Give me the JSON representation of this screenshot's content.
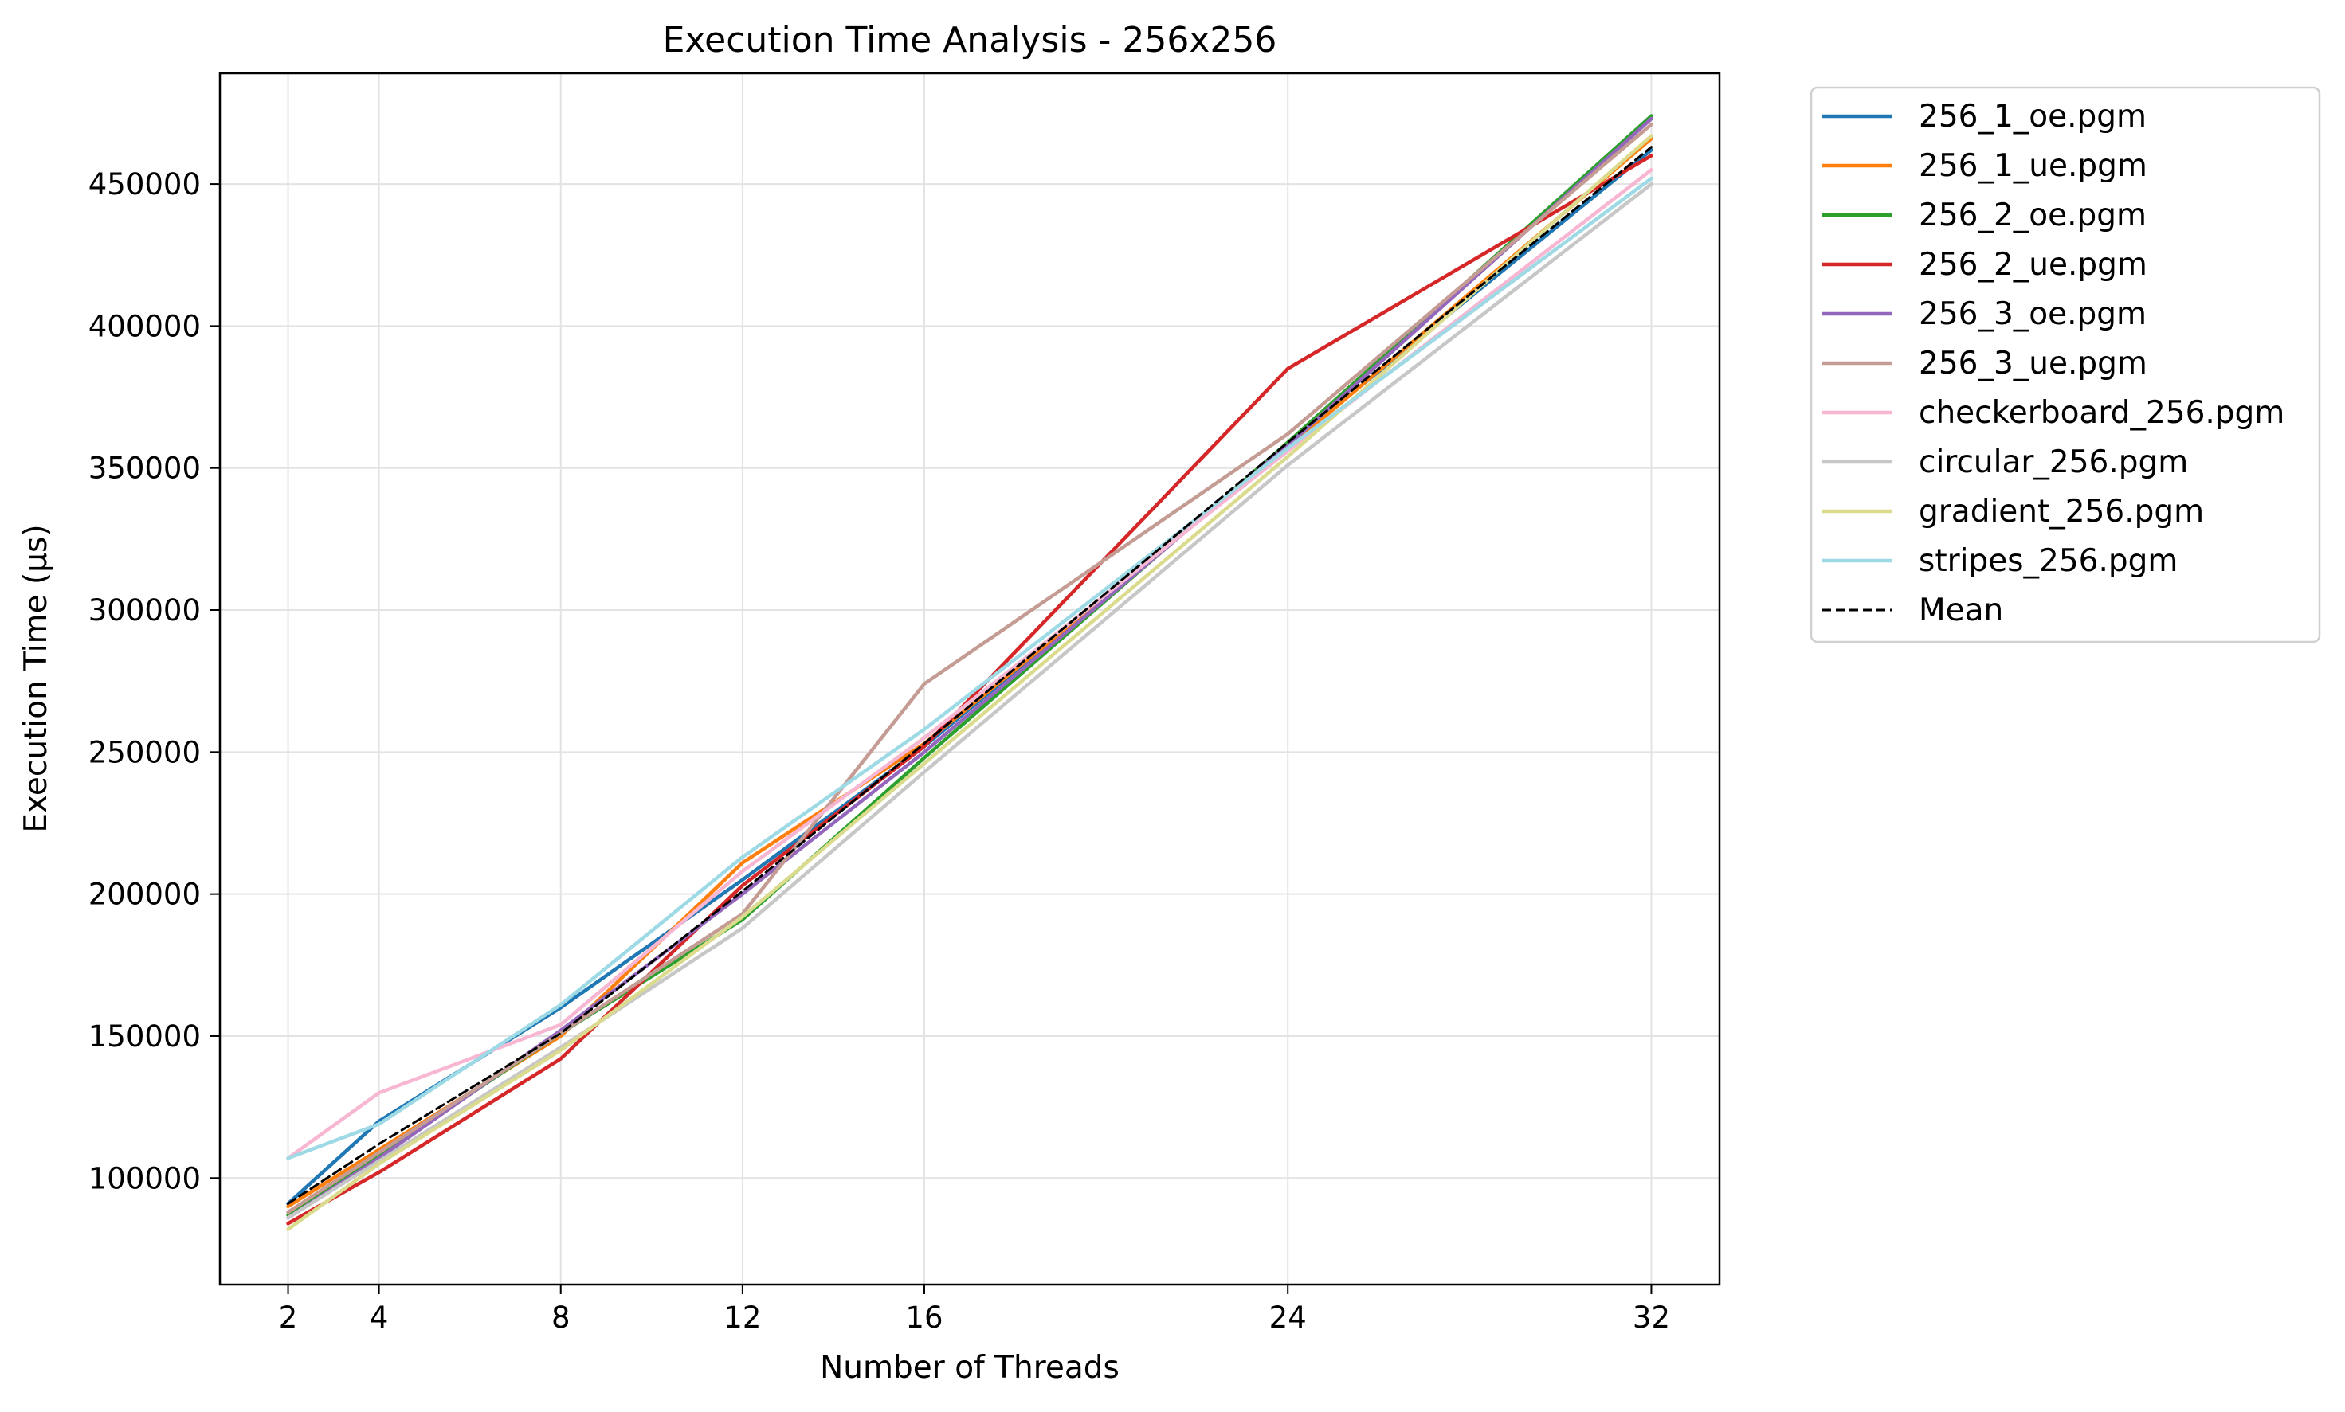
{
  "chart_data": {
    "type": "line",
    "title": "Execution Time Analysis - 256x256",
    "xlabel": "Number of Threads",
    "ylabel": "Execution Time (μs)",
    "x": [
      2,
      4,
      8,
      12,
      16,
      24,
      32
    ],
    "x_ticks": [
      "2",
      "4",
      "8",
      "12",
      "16",
      "24",
      "32"
    ],
    "y_ticks": [
      "100000",
      "150000",
      "200000",
      "250000",
      "300000",
      "350000",
      "400000",
      "450000"
    ],
    "y_tick_values": [
      100000,
      150000,
      200000,
      250000,
      300000,
      350000,
      400000,
      450000
    ],
    "xlim": [
      0.5,
      33.5
    ],
    "ylim": [
      62500,
      489000
    ],
    "grid": true,
    "legend_position": "outside-right-top",
    "series": [
      {
        "name": "256_1_oe.pgm",
        "color": "#1f77b4",
        "values": [
          91000,
          120000,
          160000,
          205000,
          252000,
          358000,
          462000
        ]
      },
      {
        "name": "256_1_ue.pgm",
        "color": "#ff7f0e",
        "values": [
          90000,
          110000,
          150000,
          211000,
          253000,
          357000,
          466000
        ]
      },
      {
        "name": "256_2_oe.pgm",
        "color": "#2ca02c",
        "values": [
          87000,
          108000,
          151000,
          191000,
          248000,
          359000,
          474000
        ]
      },
      {
        "name": "256_2_ue.pgm",
        "color": "#d62728",
        "values": [
          84000,
          102000,
          142000,
          203000,
          252000,
          385000,
          460000
        ]
      },
      {
        "name": "256_3_oe.pgm",
        "color": "#9467bd",
        "values": [
          86000,
          107000,
          152000,
          200000,
          250000,
          358000,
          473000
        ]
      },
      {
        "name": "256_3_ue.pgm",
        "color": "#c49c94",
        "values": [
          88000,
          109000,
          151000,
          193000,
          274000,
          362000,
          471000
        ]
      },
      {
        "name": "checkerboard_256.pgm",
        "color": "#f7b6d2",
        "values": [
          107000,
          130000,
          154000,
          208000,
          255000,
          356000,
          455000
        ]
      },
      {
        "name": "circular_256.pgm",
        "color": "#c7c7c7",
        "values": [
          86000,
          106000,
          146000,
          188000,
          243000,
          351000,
          450000
        ]
      },
      {
        "name": "gradient_256.pgm",
        "color": "#dbdb8d",
        "values": [
          82000,
          105000,
          145000,
          192000,
          246000,
          354000,
          467000
        ]
      },
      {
        "name": "stripes_256.pgm",
        "color": "#9edae5",
        "values": [
          107000,
          119000,
          161000,
          213000,
          258000,
          357000,
          452000
        ]
      },
      {
        "name": "Mean",
        "color": "#000000",
        "dashed": true,
        "values": [
          91000,
          112000,
          151000,
          201000,
          253000,
          359000,
          463000
        ]
      }
    ]
  }
}
